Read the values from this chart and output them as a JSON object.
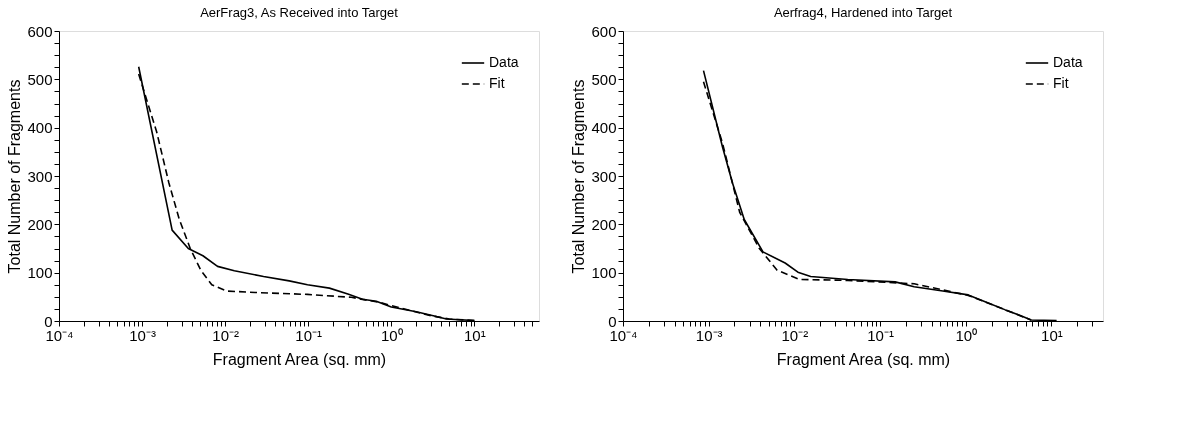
{
  "chart_data": [
    {
      "type": "line",
      "title": "AerFrag3, As Received into Target",
      "xlabel": "Fragment Area (sq. mm)",
      "ylabel": "Total Number of Fragments",
      "log": "x",
      "grid": false,
      "legend": "top right",
      "xlim": [
        0.0001,
        60
      ],
      "ylim": [
        0,
        600
      ],
      "xticks": [
        {
          "value": 0.0001,
          "label": "10⁻⁴"
        },
        {
          "value": 0.0002,
          "label": null
        },
        {
          "value": 0.0003,
          "label": null
        },
        {
          "value": 0.0004,
          "label": null
        },
        {
          "value": 0.0005,
          "label": null
        },
        {
          "value": 0.0006,
          "label": null
        },
        {
          "value": 0.0007,
          "label": null
        },
        {
          "value": 0.0008,
          "label": null
        },
        {
          "value": 0.0009,
          "label": null
        },
        {
          "value": 0.001,
          "label": "10⁻³"
        },
        {
          "value": 0.002,
          "label": null
        },
        {
          "value": 0.003,
          "label": null
        },
        {
          "value": 0.004,
          "label": null
        },
        {
          "value": 0.005,
          "label": null
        },
        {
          "value": 0.006,
          "label": null
        },
        {
          "value": 0.007,
          "label": null
        },
        {
          "value": 0.008,
          "label": null
        },
        {
          "value": 0.009,
          "label": null
        },
        {
          "value": 0.01,
          "label": "10⁻²"
        },
        {
          "value": 0.02,
          "label": null
        },
        {
          "value": 0.03,
          "label": null
        },
        {
          "value": 0.04,
          "label": null
        },
        {
          "value": 0.05,
          "label": null
        },
        {
          "value": 0.06,
          "label": null
        },
        {
          "value": 0.07,
          "label": null
        },
        {
          "value": 0.08,
          "label": null
        },
        {
          "value": 0.09,
          "label": null
        },
        {
          "value": 0.1,
          "label": "10⁻¹"
        },
        {
          "value": 0.2,
          "label": null
        },
        {
          "value": 0.3,
          "label": null
        },
        {
          "value": 0.4,
          "label": null
        },
        {
          "value": 0.5,
          "label": null
        },
        {
          "value": 0.6,
          "label": null
        },
        {
          "value": 0.7,
          "label": null
        },
        {
          "value": 0.8,
          "label": null
        },
        {
          "value": 0.9,
          "label": null
        },
        {
          "value": 1,
          "label": "10⁰"
        },
        {
          "value": 2,
          "label": null
        },
        {
          "value": 3,
          "label": null
        },
        {
          "value": 4,
          "label": null
        },
        {
          "value": 5,
          "label": null
        },
        {
          "value": 6,
          "label": null
        },
        {
          "value": 7,
          "label": null
        },
        {
          "value": 8,
          "label": null
        },
        {
          "value": 9,
          "label": null
        },
        {
          "value": 10,
          "label": "10¹"
        },
        {
          "value": 20,
          "label": null
        },
        {
          "value": 30,
          "label": null
        },
        {
          "value": 40,
          "label": null
        },
        {
          "value": 50,
          "label": null
        }
      ],
      "yticks": [
        0,
        {
          "value": 25,
          "label": null
        },
        {
          "value": 50,
          "label": null
        },
        {
          "value": 75,
          "label": null
        },
        100,
        {
          "value": 125,
          "label": null
        },
        {
          "value": 150,
          "label": null
        },
        {
          "value": 175,
          "label": null
        },
        200,
        {
          "value": 225,
          "label": null
        },
        {
          "value": 250,
          "label": null
        },
        {
          "value": 275,
          "label": null
        },
        300,
        {
          "value": 325,
          "label": null
        },
        {
          "value": 350,
          "label": null
        },
        {
          "value": 375,
          "label": null
        },
        400,
        {
          "value": 425,
          "label": null
        },
        {
          "value": 450,
          "label": null
        },
        {
          "value": 475,
          "label": null
        },
        500,
        {
          "value": 525,
          "label": null
        },
        {
          "value": 550,
          "label": null
        },
        {
          "value": 575,
          "label": null
        },
        600
      ],
      "series": [
        {
          "name": "Data",
          "color": "#000000",
          "line_style": "solid",
          "x": [
            0.00091,
            0.0023,
            0.0036,
            0.0054,
            0.0081,
            0.0129,
            0.029,
            0.059,
            0.098,
            0.18,
            0.3,
            0.45,
            0.66,
            1.0,
            2.0,
            3.2,
            4.6,
            10
          ],
          "values": [
            526,
            188,
            150,
            135,
            113,
            104,
            92,
            83,
            75,
            68,
            56,
            45,
            41,
            29,
            19,
            11,
            4,
            1
          ]
        },
        {
          "name": "Fit",
          "color": "#000000",
          "line_style": "dashed",
          "x": [
            0.00091,
            0.0015,
            0.0021,
            0.0028,
            0.0038,
            0.0051,
            0.0069,
            0.0104,
            0.023,
            0.098,
            0.33,
            0.74,
            1.35,
            3.0,
            5.0,
            10
          ],
          "values": [
            511,
            391,
            286,
            211,
            150,
            105,
            75,
            62,
            59,
            55,
            49,
            38,
            26,
            11,
            4,
            1
          ]
        }
      ]
    },
    {
      "type": "line",
      "title": "Aerfrag4, Hardened into Target",
      "xlabel": "Fragment Area (sq. mm)",
      "ylabel": "Total Number of Fragments",
      "log": "x",
      "grid": false,
      "legend": "top right",
      "xlim": [
        0.0001,
        40
      ],
      "ylim": [
        0,
        600
      ],
      "xticks": [
        {
          "value": 0.0001,
          "label": "10⁻⁴"
        },
        {
          "value": 0.0002,
          "label": null
        },
        {
          "value": 0.0003,
          "label": null
        },
        {
          "value": 0.0004,
          "label": null
        },
        {
          "value": 0.0005,
          "label": null
        },
        {
          "value": 0.0006,
          "label": null
        },
        {
          "value": 0.0007,
          "label": null
        },
        {
          "value": 0.0008,
          "label": null
        },
        {
          "value": 0.0009,
          "label": null
        },
        {
          "value": 0.001,
          "label": "10⁻³"
        },
        {
          "value": 0.002,
          "label": null
        },
        {
          "value": 0.003,
          "label": null
        },
        {
          "value": 0.004,
          "label": null
        },
        {
          "value": 0.005,
          "label": null
        },
        {
          "value": 0.006,
          "label": null
        },
        {
          "value": 0.007,
          "label": null
        },
        {
          "value": 0.008,
          "label": null
        },
        {
          "value": 0.009,
          "label": null
        },
        {
          "value": 0.01,
          "label": "10⁻²"
        },
        {
          "value": 0.02,
          "label": null
        },
        {
          "value": 0.03,
          "label": null
        },
        {
          "value": 0.04,
          "label": null
        },
        {
          "value": 0.05,
          "label": null
        },
        {
          "value": 0.06,
          "label": null
        },
        {
          "value": 0.07,
          "label": null
        },
        {
          "value": 0.08,
          "label": null
        },
        {
          "value": 0.09,
          "label": null
        },
        {
          "value": 0.1,
          "label": "10⁻¹"
        },
        {
          "value": 0.2,
          "label": null
        },
        {
          "value": 0.3,
          "label": null
        },
        {
          "value": 0.4,
          "label": null
        },
        {
          "value": 0.5,
          "label": null
        },
        {
          "value": 0.6,
          "label": null
        },
        {
          "value": 0.7,
          "label": null
        },
        {
          "value": 0.8,
          "label": null
        },
        {
          "value": 0.9,
          "label": null
        },
        {
          "value": 1,
          "label": "10⁰"
        },
        {
          "value": 2,
          "label": null
        },
        {
          "value": 3,
          "label": null
        },
        {
          "value": 4,
          "label": null
        },
        {
          "value": 5,
          "label": null
        },
        {
          "value": 6,
          "label": null
        },
        {
          "value": 7,
          "label": null
        },
        {
          "value": 8,
          "label": null
        },
        {
          "value": 9,
          "label": null
        },
        {
          "value": 10,
          "label": "10¹"
        },
        {
          "value": 20,
          "label": null
        },
        {
          "value": 30,
          "label": null
        }
      ],
      "yticks": [
        0,
        {
          "value": 25,
          "label": null
        },
        {
          "value": 50,
          "label": null
        },
        {
          "value": 75,
          "label": null
        },
        100,
        {
          "value": 125,
          "label": null
        },
        {
          "value": 150,
          "label": null
        },
        {
          "value": 175,
          "label": null
        },
        200,
        {
          "value": 225,
          "label": null
        },
        {
          "value": 250,
          "label": null
        },
        {
          "value": 275,
          "label": null
        },
        300,
        {
          "value": 325,
          "label": null
        },
        {
          "value": 350,
          "label": null
        },
        {
          "value": 375,
          "label": null
        },
        400,
        {
          "value": 425,
          "label": null
        },
        {
          "value": 450,
          "label": null
        },
        {
          "value": 475,
          "label": null
        },
        500,
        {
          "value": 525,
          "label": null
        },
        {
          "value": 550,
          "label": null
        },
        {
          "value": 575,
          "label": null
        },
        600
      ],
      "series": [
        {
          "name": "Data",
          "color": "#000000",
          "line_style": "solid",
          "x": [
            0.00087,
            0.00145,
            0.0019,
            0.0026,
            0.0043,
            0.0078,
            0.011,
            0.0155,
            0.042,
            0.15,
            0.25,
            0.54,
            1.07,
            1.8,
            2.9,
            4.4,
            5.8,
            11.5
          ],
          "values": [
            518,
            360,
            285,
            210,
            143,
            120,
            101,
            92,
            86,
            81,
            71,
            62,
            54,
            38,
            23,
            11,
            2,
            1
          ]
        },
        {
          "name": "Fit",
          "color": "#000000",
          "line_style": "dashed",
          "x": [
            0.00087,
            0.00145,
            0.0023,
            0.0039,
            0.0063,
            0.0115,
            0.042,
            0.25,
            1.07,
            2.9,
            5.8
          ],
          "values": [
            495,
            368,
            225,
            150,
            105,
            86,
            84,
            77,
            53,
            23,
            2
          ]
        }
      ]
    }
  ]
}
